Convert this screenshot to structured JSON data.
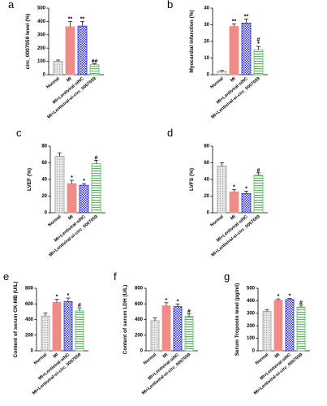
{
  "chart_data": [
    {
      "type": "bar",
      "panel": "a",
      "ylabel": "circ_0007059 level (%)",
      "categories": [
        "Normal",
        "MI",
        "MI+Lentiviral-siNC",
        "MI+Lentiviral-si-circ_0007059"
      ],
      "values": [
        100,
        360,
        365,
        75
      ],
      "errors": [
        10,
        40,
        35,
        8
      ],
      "annotations": [
        [],
        [
          "**"
        ],
        [
          "**"
        ],
        [
          "##"
        ]
      ],
      "colors": [
        "#9a9a9a",
        "#f08c88",
        "#2a2ad0",
        "#4cc04c"
      ],
      "ylim": [
        0,
        500
      ],
      "yticks": [
        0,
        100,
        200,
        300,
        400,
        500
      ]
    },
    {
      "type": "bar",
      "panel": "b",
      "ylabel": "Myocardial infarction (%)",
      "categories": [
        "Normal",
        "MI",
        "MI+Lentiviral-siNC",
        "MI+Lentiviral-si-circ_0007059"
      ],
      "values": [
        2,
        29,
        31,
        15
      ],
      "errors": [
        0.5,
        1.5,
        2.5,
        2
      ],
      "annotations": [
        [],
        [
          "**"
        ],
        [
          "**"
        ],
        [
          "#",
          "*"
        ]
      ],
      "colors": [
        "#9a9a9a",
        "#f08c88",
        "#2a2ad0",
        "#4cc04c"
      ],
      "ylim": [
        0,
        40
      ],
      "yticks": [
        0,
        10,
        20,
        30,
        40
      ]
    },
    {
      "type": "bar",
      "panel": "c",
      "ylabel": "LVEF (%)",
      "categories": [
        "Normal",
        "MI",
        "MI+Lentiviral-siNC",
        "MI+Lentiviral-si-circ_0007059"
      ],
      "values": [
        68,
        35,
        33,
        59
      ],
      "errors": [
        4,
        4,
        2,
        4
      ],
      "annotations": [
        [],
        [
          "*"
        ],
        [
          "*"
        ],
        [
          "#"
        ]
      ],
      "colors": [
        "#9a9a9a",
        "#f08c88",
        "#2a2ad0",
        "#4cc04c"
      ],
      "ylim": [
        0,
        80
      ],
      "yticks": [
        0,
        20,
        40,
        60,
        80
      ]
    },
    {
      "type": "bar",
      "panel": "d",
      "ylabel": "LVFS (%)",
      "categories": [
        "Normal",
        "MI",
        "MI+Lentiviral-siNC",
        "MI+Lentiviral-si-circ_0007059"
      ],
      "values": [
        56,
        25,
        23,
        45
      ],
      "errors": [
        4,
        3,
        3,
        3
      ],
      "annotations": [
        [],
        [
          "*"
        ],
        [
          "*"
        ],
        [
          "#"
        ]
      ],
      "colors": [
        "#9a9a9a",
        "#f08c88",
        "#2a2ad0",
        "#4cc04c"
      ],
      "ylim": [
        0,
        80
      ],
      "yticks": [
        0,
        20,
        40,
        60,
        80
      ]
    },
    {
      "type": "bar",
      "panel": "e",
      "ylabel": "Content of serum CK-MB (U/L)",
      "categories": [
        "Normal",
        "MI",
        "MI+Lentiviral-siNC",
        "MI+Lentiviral-si-circ_0007059"
      ],
      "values": [
        445,
        620,
        630,
        510
      ],
      "errors": [
        40,
        40,
        45,
        40
      ],
      "annotations": [
        [],
        [
          "*"
        ],
        [
          "*"
        ],
        [
          "#"
        ]
      ],
      "colors": [
        "#9a9a9a",
        "#f08c88",
        "#2a2ad0",
        "#4cc04c"
      ],
      "ylim": [
        0,
        800
      ],
      "yticks": [
        0,
        200,
        400,
        600,
        800
      ]
    },
    {
      "type": "bar",
      "panel": "f",
      "ylabel": "Content of serum LDH (U/L)",
      "categories": [
        "Normal",
        "MI",
        "MI+Lentiviral-siNC",
        "MI+Lentiviral-si-circ_0007059"
      ],
      "values": [
        385,
        575,
        565,
        440
      ],
      "errors": [
        35,
        40,
        35,
        35
      ],
      "annotations": [
        [],
        [
          "*"
        ],
        [
          "*"
        ],
        [
          "#"
        ]
      ],
      "colors": [
        "#9a9a9a",
        "#f08c88",
        "#2a2ad0",
        "#4cc04c"
      ],
      "ylim": [
        0,
        800
      ],
      "yticks": [
        0,
        200,
        400,
        600,
        800
      ]
    },
    {
      "type": "bar",
      "panel": "g",
      "ylabel": "Serum Troponin level (pg/ml)",
      "categories": [
        "Normal",
        "MI",
        "MI+Lentiviral-siNC",
        "MI+Lentiviral-si-circ_0007059"
      ],
      "values": [
        315,
        405,
        410,
        350
      ],
      "errors": [
        15,
        10,
        10,
        15
      ],
      "annotations": [
        [],
        [
          "*"
        ],
        [
          "*"
        ],
        [
          "#"
        ]
      ],
      "colors": [
        "#9a9a9a",
        "#f08c88",
        "#2a2ad0",
        "#4cc04c"
      ],
      "ylim": [
        0,
        500
      ],
      "yticks": [
        0,
        100,
        200,
        300,
        400,
        500
      ]
    }
  ]
}
